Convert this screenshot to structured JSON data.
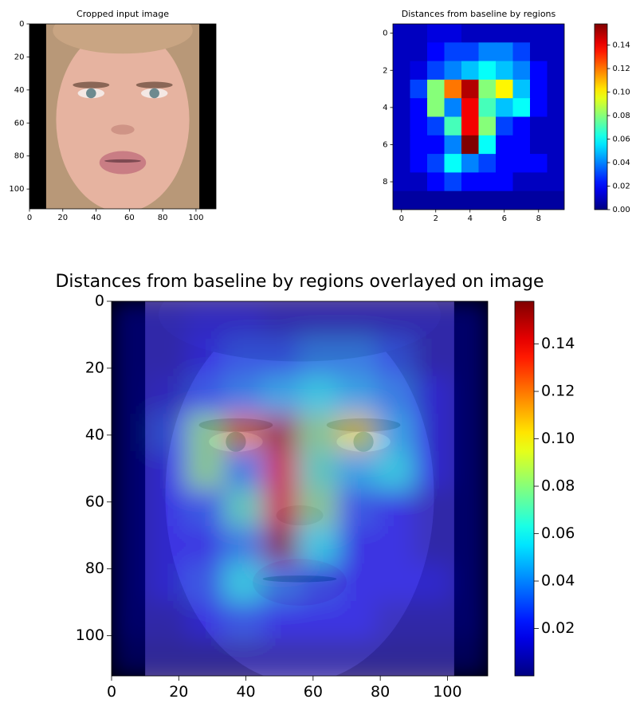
{
  "chart_data": [
    {
      "type": "image",
      "title": "Cropped input image",
      "xlim": [
        0,
        112
      ],
      "ylim": [
        112,
        0
      ],
      "xticks": [
        0,
        20,
        40,
        60,
        80,
        100
      ],
      "yticks": [
        0,
        20,
        40,
        60,
        80,
        100
      ]
    },
    {
      "type": "heatmap",
      "title": "Distances from baseline by regions",
      "xlim": [
        -0.5,
        9.5
      ],
      "ylim": [
        9.5,
        -0.5
      ],
      "xticks": [
        0,
        2,
        4,
        6,
        8
      ],
      "yticks": [
        0,
        2,
        4,
        6,
        8
      ],
      "values": [
        [
          0.01,
          0.01,
          0.015,
          0.015,
          0.01,
          0.01,
          0.01,
          0.01,
          0.01,
          0.01
        ],
        [
          0.01,
          0.01,
          0.02,
          0.03,
          0.03,
          0.04,
          0.04,
          0.03,
          0.01,
          0.01
        ],
        [
          0.01,
          0.015,
          0.03,
          0.04,
          0.05,
          0.06,
          0.05,
          0.04,
          0.02,
          0.01
        ],
        [
          0.01,
          0.03,
          0.08,
          0.12,
          0.15,
          0.08,
          0.1,
          0.05,
          0.02,
          0.01
        ],
        [
          0.01,
          0.02,
          0.08,
          0.04,
          0.14,
          0.07,
          0.05,
          0.06,
          0.02,
          0.01
        ],
        [
          0.01,
          0.02,
          0.03,
          0.07,
          0.14,
          0.08,
          0.03,
          0.02,
          0.01,
          0.01
        ],
        [
          0.01,
          0.02,
          0.02,
          0.04,
          0.158,
          0.06,
          0.02,
          0.02,
          0.01,
          0.01
        ],
        [
          0.01,
          0.02,
          0.03,
          0.06,
          0.04,
          0.03,
          0.02,
          0.02,
          0.02,
          0.01
        ],
        [
          0.01,
          0.01,
          0.02,
          0.03,
          0.02,
          0.02,
          0.02,
          0.01,
          0.01,
          0.01
        ],
        [
          0.005,
          0.005,
          0.005,
          0.005,
          0.005,
          0.005,
          0.005,
          0.005,
          0.005,
          0.005
        ]
      ],
      "colormap": "jet",
      "clim": [
        0,
        0.158
      ],
      "cticks": [
        {
          "value": 0,
          "label": "0.00"
        },
        {
          "value": 0.02,
          "label": "0.02"
        },
        {
          "value": 0.04,
          "label": "0.04"
        },
        {
          "value": 0.06,
          "label": "0.06"
        },
        {
          "value": 0.08,
          "label": "0.08"
        },
        {
          "value": 0.1,
          "label": "0.10"
        },
        {
          "value": 0.12,
          "label": "0.12"
        },
        {
          "value": 0.14,
          "label": "0.14"
        }
      ]
    },
    {
      "type": "overlay",
      "title": "Distances from baseline by regions overlayed on image",
      "xlim": [
        0,
        112
      ],
      "ylim": [
        112,
        0
      ],
      "xticks": [
        0,
        20,
        40,
        60,
        80,
        100
      ],
      "yticks": [
        0,
        20,
        40,
        60,
        80,
        100
      ],
      "colormap": "jet",
      "clim": [
        0,
        0.158
      ],
      "cticks": [
        {
          "value": 0.02,
          "label": "0.02"
        },
        {
          "value": 0.04,
          "label": "0.04"
        },
        {
          "value": 0.06,
          "label": "0.06"
        },
        {
          "value": 0.08,
          "label": "0.08"
        },
        {
          "value": 0.1,
          "label": "0.10"
        },
        {
          "value": 0.12,
          "label": "0.12"
        },
        {
          "value": 0.14,
          "label": "0.14"
        }
      ]
    }
  ]
}
